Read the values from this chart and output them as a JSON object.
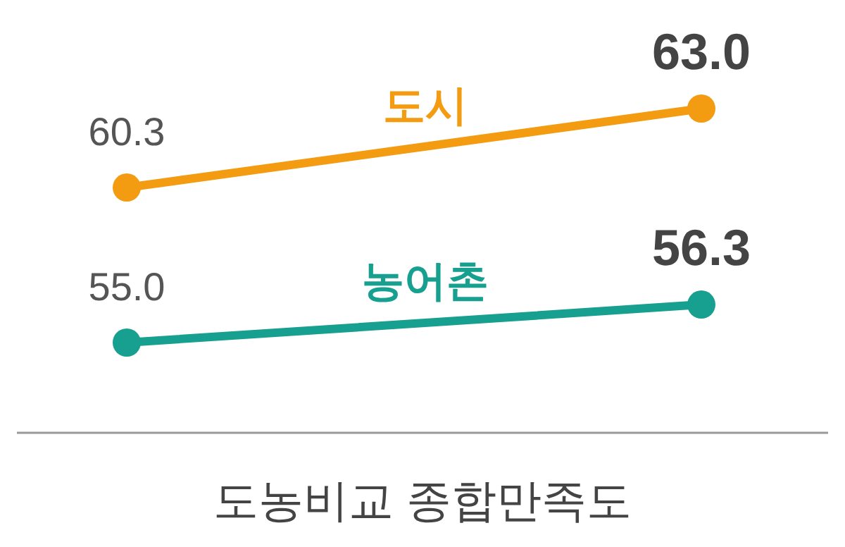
{
  "chart_data": {
    "type": "line",
    "xlabel": "도농비교 종합만족도",
    "categories": [
      null,
      null
    ],
    "marker": "circle",
    "line_style": "solid",
    "legend": false,
    "series": [
      {
        "name": "도시",
        "color": "#f39c12",
        "values": [
          60.3,
          63.0
        ],
        "value_labels": [
          "60.3",
          "63.0"
        ]
      },
      {
        "name": "농어촌",
        "color": "#17a08f",
        "values": [
          55.0,
          56.3
        ],
        "value_labels": [
          "55.0",
          "56.3"
        ]
      }
    ]
  }
}
